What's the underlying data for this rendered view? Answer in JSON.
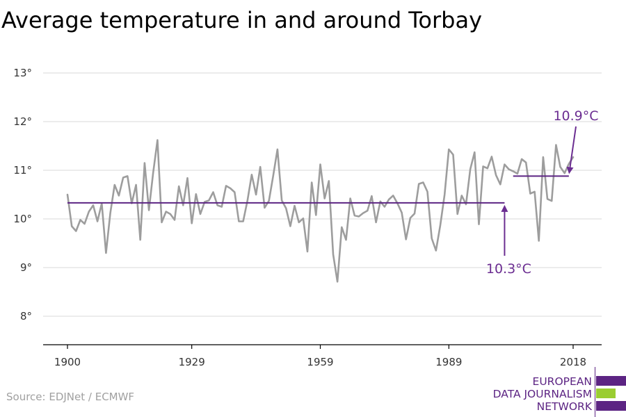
{
  "chart_data": {
    "type": "line",
    "title": "Average temperature in and around Torbay",
    "xlabel": "",
    "ylabel": "",
    "x_ticks": [
      "1900",
      "1929",
      "1959",
      "1989",
      "2018"
    ],
    "x_tick_values": [
      1900,
      1929,
      1959,
      1989,
      2018
    ],
    "y_ticks": [
      "8°",
      "9°",
      "10°",
      "11°",
      "12°",
      "13°"
    ],
    "y_tick_values": [
      8,
      9,
      10,
      11,
      12,
      13
    ],
    "xlim": [
      1900,
      2018
    ],
    "ylim": [
      8,
      13
    ],
    "grid": "horizontal",
    "x": [
      1900,
      1901,
      1902,
      1903,
      1904,
      1905,
      1906,
      1907,
      1908,
      1909,
      1910,
      1911,
      1912,
      1913,
      1914,
      1915,
      1916,
      1917,
      1918,
      1919,
      1920,
      1921,
      1922,
      1923,
      1924,
      1925,
      1926,
      1927,
      1928,
      1929,
      1930,
      1931,
      1932,
      1933,
      1934,
      1935,
      1936,
      1937,
      1938,
      1939,
      1940,
      1941,
      1942,
      1943,
      1944,
      1945,
      1946,
      1947,
      1948,
      1949,
      1950,
      1951,
      1952,
      1953,
      1954,
      1955,
      1956,
      1957,
      1958,
      1959,
      1960,
      1961,
      1962,
      1963,
      1964,
      1965,
      1966,
      1967,
      1968,
      1969,
      1970,
      1971,
      1972,
      1973,
      1974,
      1975,
      1976,
      1977,
      1978,
      1979,
      1980,
      1981,
      1982,
      1983,
      1984,
      1985,
      1986,
      1987,
      1988,
      1989,
      1990,
      1991,
      1992,
      1993,
      1994,
      1995,
      1996,
      1997,
      1998,
      1999,
      2000,
      2001,
      2002,
      2003,
      2004,
      2005,
      2006,
      2007,
      2008,
      2009,
      2010,
      2011,
      2012,
      2013,
      2014,
      2015,
      2016,
      2017,
      2018
    ],
    "series": [
      {
        "values": [
          10.5,
          9.85,
          9.75,
          9.98,
          9.9,
          10.15,
          10.28,
          9.95,
          10.32,
          9.3,
          10.12,
          10.7,
          10.48,
          10.85,
          10.88,
          10.32,
          10.7,
          9.57,
          11.15,
          10.18,
          10.95,
          11.62,
          9.93,
          10.15,
          10.1,
          9.98,
          10.67,
          10.28,
          10.84,
          9.91,
          10.51,
          10.1,
          10.35,
          10.38,
          10.55,
          10.28,
          10.25,
          10.68,
          10.63,
          10.55,
          9.95,
          9.95,
          10.38,
          10.91,
          10.5,
          11.07,
          10.23,
          10.37,
          10.88,
          11.43,
          10.38,
          10.22,
          9.85,
          10.27,
          9.93,
          10.01,
          9.33,
          10.75,
          10.08,
          11.12,
          10.42,
          10.78,
          9.27,
          8.71,
          9.83,
          9.57,
          10.42,
          10.07,
          10.05,
          10.12,
          10.17,
          10.47,
          9.93,
          10.36,
          10.25,
          10.4,
          10.48,
          10.32,
          10.13,
          9.58,
          10.02,
          10.11,
          10.72,
          10.75,
          10.56,
          9.6,
          9.35,
          9.87,
          10.5,
          11.43,
          11.32,
          10.1,
          10.48,
          10.3,
          11.02,
          11.37,
          9.89,
          11.08,
          11.04,
          11.28,
          10.9,
          10.71,
          11.12,
          11.02,
          10.98,
          10.93,
          11.23,
          11.16,
          10.52,
          10.56,
          9.55,
          11.27,
          10.41,
          10.37,
          11.52,
          11.07,
          10.94,
          11.13,
          11.27
        ]
      }
    ],
    "averages": [
      {
        "label": "10.3°C",
        "value": 10.33,
        "x_start": 1900,
        "x_end": 2002
      },
      {
        "label": "10.9°C",
        "value": 10.88,
        "x_start": 2004,
        "x_end": 2017
      }
    ],
    "colors": {
      "series_line": "#9d9d9d",
      "average_line": "#5c2483",
      "annotation": "#6b2d91",
      "gridline": "#d9d9d9",
      "axis": "#000000"
    }
  },
  "source": "Source: EDJNet / ECMWF",
  "logo": {
    "lines": [
      "EUROPEAN",
      "DATA JOURNALISM",
      "NETWORK"
    ],
    "text_color": "#5c2483",
    "bar_colors": [
      "#5c2483",
      "#9acd32",
      "#5c2483"
    ]
  }
}
